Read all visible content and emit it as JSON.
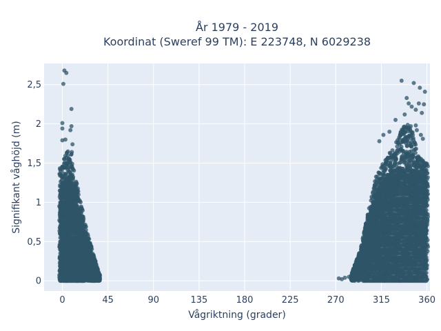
{
  "chart_data": {
    "type": "scatter",
    "title": "År 1979 - 2019",
    "subtitle": "Koordinat (Sweref 99 TM): E 223748, N 6029238",
    "xlabel": "Vågriktning (grader)",
    "ylabel": "Signifikant våghöjd (m)",
    "xlim": [
      -18,
      363
    ],
    "ylim": [
      -0.13,
      2.77
    ],
    "xticks": [
      0,
      45,
      90,
      135,
      180,
      225,
      270,
      315,
      360
    ],
    "xtick_labels": [
      "0",
      "45",
      "90",
      "135",
      "180",
      "225",
      "270",
      "315",
      "360"
    ],
    "yticks": [
      0,
      0.5,
      1,
      1.5,
      2,
      2.5
    ],
    "ytick_labels": [
      "0",
      "0,5",
      "1",
      "1,5",
      "2",
      "2,5"
    ],
    "grid": true,
    "plot_background": "#e5ecf6",
    "marker_color": "#2f5468",
    "clusters": [
      {
        "x_range": [
          -3,
          37
        ],
        "y_range": [
          0,
          1.75
        ]
      },
      {
        "x_range": [
          270,
          361
        ],
        "y_range": [
          0,
          2.2
        ]
      }
    ],
    "outliers": [
      {
        "x": 2,
        "y": 2.68
      },
      {
        "x": 4,
        "y": 2.65
      },
      {
        "x": 1,
        "y": 2.51
      },
      {
        "x": 9,
        "y": 2.19
      },
      {
        "x": 0,
        "y": 2.01
      },
      {
        "x": 0,
        "y": 1.94
      },
      {
        "x": 9,
        "y": 1.97
      },
      {
        "x": 8,
        "y": 1.92
      },
      {
        "x": 0,
        "y": 1.79
      },
      {
        "x": 3,
        "y": 1.8
      },
      {
        "x": 10,
        "y": 1.74
      },
      {
        "x": 335,
        "y": 2.55
      },
      {
        "x": 347,
        "y": 2.52
      },
      {
        "x": 353,
        "y": 2.46
      },
      {
        "x": 358,
        "y": 2.41
      },
      {
        "x": 340,
        "y": 2.33
      },
      {
        "x": 342,
        "y": 2.26
      },
      {
        "x": 352,
        "y": 2.26
      },
      {
        "x": 357,
        "y": 2.25
      },
      {
        "x": 345,
        "y": 2.22
      },
      {
        "x": 355,
        "y": 2.14
      },
      {
        "x": 349,
        "y": 2.18
      },
      {
        "x": 338,
        "y": 2.12
      },
      {
        "x": 329,
        "y": 2.05
      },
      {
        "x": 349,
        "y": 1.98
      },
      {
        "x": 344,
        "y": 1.97
      },
      {
        "x": 350,
        "y": 1.92
      },
      {
        "x": 323,
        "y": 1.9
      },
      {
        "x": 354,
        "y": 1.86
      },
      {
        "x": 356,
        "y": 1.81
      },
      {
        "x": 317,
        "y": 1.86
      },
      {
        "x": 313,
        "y": 1.78
      },
      {
        "x": 273,
        "y": 0.03
      },
      {
        "x": 276,
        "y": 0.02
      },
      {
        "x": 279,
        "y": 0.04
      },
      {
        "x": 283,
        "y": 0.05
      },
      {
        "x": 286,
        "y": 0.1
      },
      {
        "x": 290,
        "y": 0.22
      },
      {
        "x": 293,
        "y": 0.35
      }
    ]
  }
}
